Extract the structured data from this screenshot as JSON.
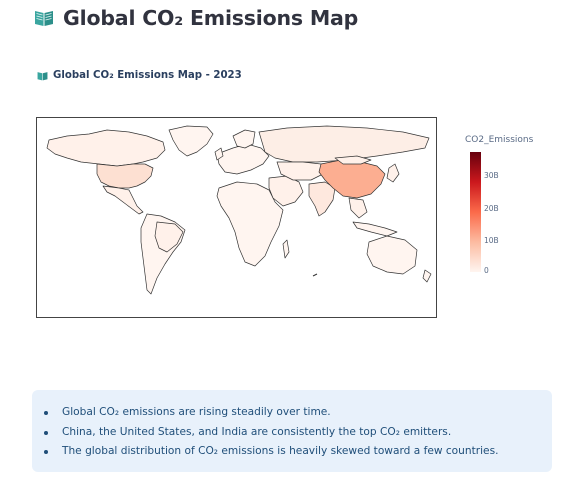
{
  "page": {
    "title": "Global CO₂ Emissions Map",
    "title_icon": "book-open-icon"
  },
  "chart": {
    "title": "Global CO₂ Emissions Map - 2023",
    "title_icon": "book-open-icon",
    "colorbar": {
      "title": "CO2_Emissions",
      "ticks": [
        "30B",
        "20B",
        "10B",
        "0"
      ],
      "colors": [
        "#fff5f0",
        "#fcbba1",
        "#fb6a4a",
        "#cb181d",
        "#67000d"
      ]
    }
  },
  "chart_data": {
    "type": "choropleth",
    "title": "Global CO₂ Emissions Map - 2023",
    "color_variable": "CO2_Emissions",
    "color_range": [
      0,
      37
    ],
    "colorbar_ticks": [
      "30B",
      "20B",
      "10B",
      "0"
    ],
    "colorscale": "Reds",
    "highlighted_regions": [
      {
        "name": "China",
        "relative_color": "#fcae91"
      },
      {
        "name": "United States",
        "relative_color": "#fde0d2"
      },
      {
        "name": "India",
        "relative_color": "#fee8de"
      },
      {
        "name": "Russia",
        "relative_color": "#fdeee6"
      }
    ],
    "default_color": "#fff5f0"
  },
  "insights": {
    "items": [
      "Global CO₂ emissions are rising steadily over time.",
      "China, the United States, and India are consistently the top CO₂ emitters.",
      "The global distribution of CO₂ emissions is heavily skewed toward a few countries."
    ]
  }
}
